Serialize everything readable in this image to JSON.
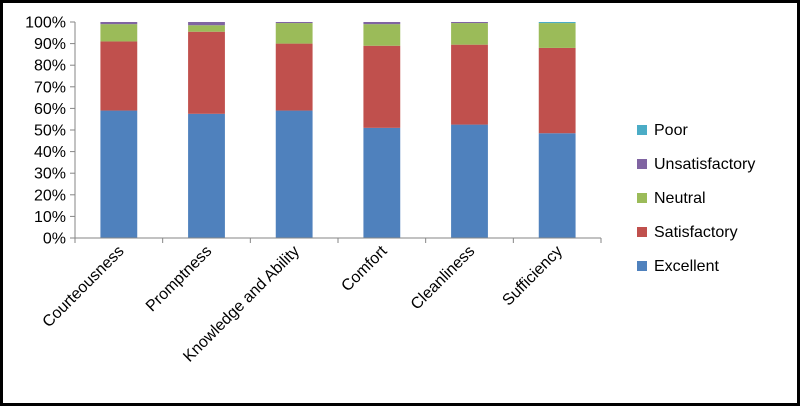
{
  "chart_data": {
    "type": "bar",
    "stacked": true,
    "percent": true,
    "title": "",
    "xlabel": "",
    "ylabel": "",
    "ylim": [
      0,
      100
    ],
    "yticks": [
      "0%",
      "10%",
      "20%",
      "30%",
      "40%",
      "50%",
      "60%",
      "70%",
      "80%",
      "90%",
      "100%"
    ],
    "categories": [
      "Courteousness",
      "Promptness",
      "Knowledge and Ability",
      "Comfort",
      "Cleanliness",
      "Sufficiency"
    ],
    "series": [
      {
        "name": "Excellent",
        "color": "#4F81BD",
        "values": [
          59,
          57.5,
          59,
          51,
          52.5,
          48.5
        ]
      },
      {
        "name": "Satisfactory",
        "color": "#C0504D",
        "values": [
          32,
          38,
          31,
          38,
          37,
          39.5
        ]
      },
      {
        "name": "Neutral",
        "color": "#9BBB59",
        "values": [
          8,
          3,
          9.5,
          10,
          10,
          11.5
        ]
      },
      {
        "name": "Unsatisfactory",
        "color": "#8064A2",
        "values": [
          1,
          1.5,
          0.5,
          1,
          0.5,
          0
        ]
      },
      {
        "name": "Poor",
        "color": "#4BACC6",
        "values": [
          0,
          0,
          0,
          0,
          0,
          0.5
        ]
      }
    ],
    "grid": false,
    "legend": "right"
  }
}
